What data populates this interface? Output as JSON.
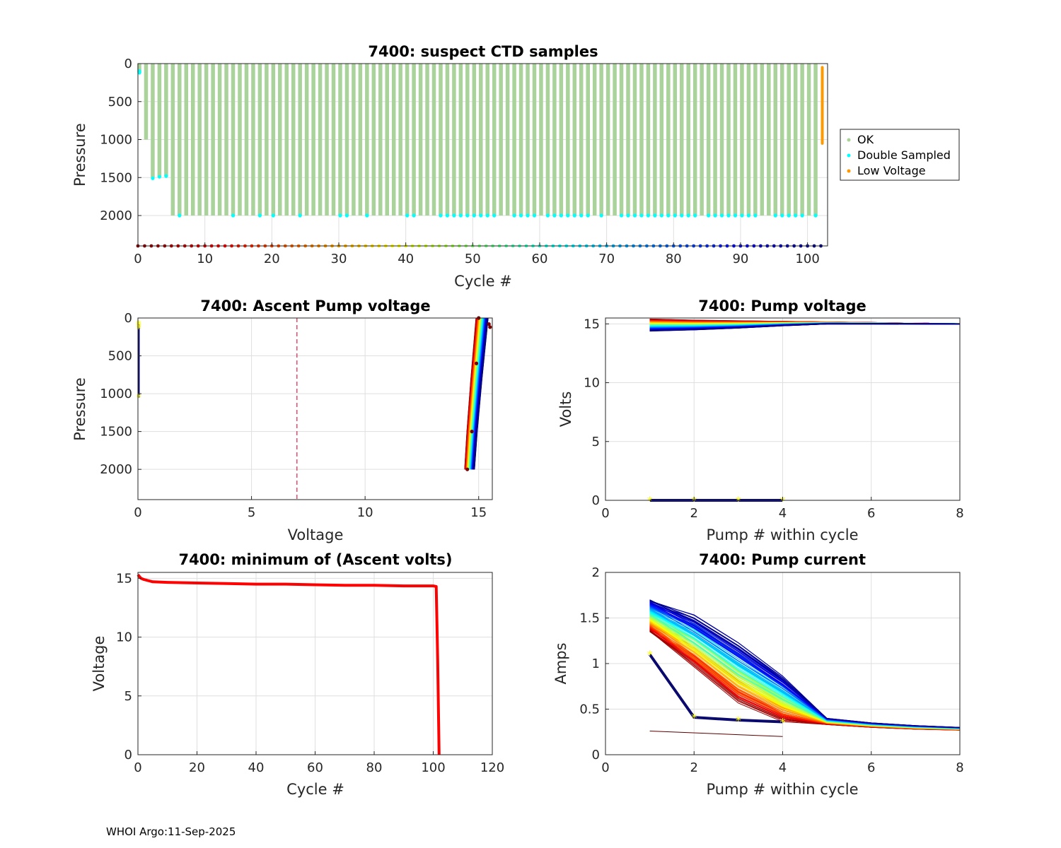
{
  "footer": "WHOI Argo:11-Sep-2025",
  "colors": {
    "ok": "#a9d39a",
    "double_sampled": "#00ffff",
    "low_voltage": "#ff9900",
    "min_volts_line": "#ff0000",
    "limit_line": "#e0204a",
    "marker_star": "#ffff00"
  },
  "chart_data": [
    {
      "id": "ctd",
      "type": "scatter",
      "title": "7400: suspect CTD samples",
      "xlabel": "Cycle #",
      "ylabel": "Pressure",
      "xlim": [
        0,
        103
      ],
      "ylim": [
        2400,
        0
      ],
      "xticks": [
        0,
        10,
        20,
        30,
        40,
        50,
        60,
        70,
        80,
        90,
        100
      ],
      "yticks": [
        0,
        500,
        1000,
        1500,
        2000
      ],
      "legend": [
        "OK",
        "Double Sampled",
        "Low Voltage"
      ],
      "legend_position": "right",
      "profiles": {
        "cycles": [
          0,
          1,
          2,
          3,
          4,
          5,
          6,
          7,
          8,
          9,
          10,
          11,
          12,
          13,
          14,
          15,
          16,
          17,
          18,
          19,
          20,
          21,
          22,
          23,
          24,
          25,
          26,
          27,
          28,
          29,
          30,
          31,
          32,
          33,
          34,
          35,
          36,
          37,
          38,
          39,
          40,
          41,
          42,
          43,
          44,
          45,
          46,
          47,
          48,
          49,
          50,
          51,
          52,
          53,
          54,
          55,
          56,
          57,
          58,
          59,
          60,
          61,
          62,
          63,
          64,
          65,
          66,
          67,
          68,
          69,
          70,
          71,
          72,
          73,
          74,
          75,
          76,
          77,
          78,
          79,
          80,
          81,
          82,
          83,
          84,
          85,
          86,
          87,
          88,
          89,
          90,
          91,
          92,
          93,
          94,
          95,
          96,
          97,
          98,
          99,
          100,
          101
        ],
        "max_pressure": [
          120,
          1000,
          1500,
          1490,
          1480,
          2000,
          2000,
          2000,
          2000,
          2000,
          2000,
          2000,
          2000,
          2000,
          2000,
          2000,
          2000,
          2000,
          2000,
          2000,
          2000,
          2000,
          2000,
          2000,
          2000,
          2000,
          2000,
          2000,
          2000,
          2000,
          2000,
          2000,
          2000,
          2000,
          2000,
          2000,
          2000,
          2000,
          2000,
          2000,
          2000,
          2000,
          2000,
          2000,
          2000,
          2000,
          2000,
          2000,
          2000,
          2000,
          2000,
          2000,
          2000,
          2000,
          2000,
          2000,
          2000,
          2000,
          2000,
          2000,
          2000,
          2000,
          2000,
          2000,
          2000,
          2000,
          2000,
          2000,
          2000,
          2000,
          2000,
          2000,
          2000,
          2000,
          2000,
          2000,
          2000,
          2000,
          2000,
          2000,
          2000,
          2000,
          2000,
          2000,
          2000,
          2000,
          2000,
          2000,
          2000,
          2000,
          2000,
          2000,
          2000,
          2000,
          2000,
          2000,
          2000,
          2000,
          2000,
          2000,
          2000,
          2000
        ]
      },
      "double_sampled": [
        [
          0,
          100
        ],
        [
          0,
          120
        ],
        [
          2,
          1510
        ],
        [
          3,
          1490
        ],
        [
          4,
          1480
        ],
        [
          6,
          2000
        ],
        [
          14,
          2000
        ],
        [
          18,
          2000
        ],
        [
          20,
          2000
        ],
        [
          24,
          2000
        ],
        [
          30,
          2000
        ],
        [
          31,
          2000
        ],
        [
          34,
          2000
        ],
        [
          40,
          2000
        ],
        [
          41,
          2000
        ],
        [
          45,
          2000
        ],
        [
          46,
          2000
        ],
        [
          47,
          2000
        ],
        [
          48,
          2000
        ],
        [
          49,
          2000
        ],
        [
          50,
          2000
        ],
        [
          51,
          2000
        ],
        [
          52,
          2000
        ],
        [
          53,
          2000
        ],
        [
          56,
          2000
        ],
        [
          57,
          2000
        ],
        [
          58,
          2000
        ],
        [
          59,
          2000
        ],
        [
          61,
          2000
        ],
        [
          62,
          2000
        ],
        [
          63,
          2000
        ],
        [
          64,
          2000
        ],
        [
          65,
          2000
        ],
        [
          66,
          2000
        ],
        [
          67,
          2000
        ],
        [
          69,
          2000
        ],
        [
          72,
          2000
        ],
        [
          73,
          2000
        ],
        [
          74,
          2000
        ],
        [
          75,
          2000
        ],
        [
          76,
          2000
        ],
        [
          77,
          2000
        ],
        [
          78,
          2000
        ],
        [
          79,
          2000
        ],
        [
          80,
          2000
        ],
        [
          81,
          2000
        ],
        [
          82,
          2000
        ],
        [
          83,
          2000
        ],
        [
          85,
          2000
        ],
        [
          86,
          2000
        ],
        [
          87,
          2000
        ],
        [
          88,
          2000
        ],
        [
          89,
          2000
        ],
        [
          90,
          2000
        ],
        [
          91,
          2000
        ],
        [
          92,
          2000
        ],
        [
          95,
          2000
        ],
        [
          96,
          2000
        ],
        [
          97,
          2000
        ],
        [
          98,
          2000
        ],
        [
          99,
          2000
        ],
        [
          101,
          2000
        ]
      ],
      "low_voltage": {
        "cycle": 102,
        "p_min": 50,
        "p_max": 1050
      },
      "cycle_markers": {
        "from": 0,
        "to": 102,
        "pressure": 2400
      }
    },
    {
      "id": "ascent",
      "type": "line",
      "title": "7400: Ascent Pump voltage",
      "xlabel": "Voltage",
      "ylabel": "Pressure",
      "xlim": [
        0,
        15.6
      ],
      "ylim": [
        2400,
        0
      ],
      "xticks": [
        0,
        5,
        10,
        15
      ],
      "yticks": [
        0,
        500,
        1000,
        1500,
        2000
      ],
      "limit_line_x": 7,
      "failed_profile": {
        "voltage": 0,
        "pressures": [
          80,
          100,
          120,
          140,
          1050
        ]
      },
      "profile_range": {
        "voltage_at_2000": [
          14.4,
          14.8
        ],
        "voltage_at_0": [
          14.9,
          15.4
        ]
      }
    },
    {
      "id": "pumpv",
      "type": "line",
      "title": "7400: Pump voltage",
      "xlabel": "Pump # within cycle",
      "ylabel": "Volts",
      "xlim": [
        0,
        8
      ],
      "ylim": [
        0,
        15.5
      ],
      "xticks": [
        0,
        2,
        4,
        6,
        8
      ],
      "yticks": [
        0,
        5,
        10,
        15
      ],
      "series_envelope": {
        "x": [
          1,
          2,
          3,
          4,
          5,
          6,
          7,
          8
        ],
        "first": [
          15.4,
          15.3,
          15.25,
          15.2,
          15.15,
          15.1,
          15.05,
          15.0
        ],
        "last": [
          14.4,
          14.5,
          14.65,
          14.85,
          15.0,
          15.0,
          15.0,
          15.0
        ]
      },
      "failed_cycle": {
        "x": [
          1,
          2,
          3,
          4
        ],
        "y": [
          0,
          0,
          0,
          0
        ]
      }
    },
    {
      "id": "minv",
      "type": "line",
      "title": "7400: minimum of (Ascent volts)",
      "xlabel": "Cycle #",
      "ylabel": "Voltage",
      "xlim": [
        0,
        120
      ],
      "ylim": [
        0,
        15.5
      ],
      "xticks": [
        0,
        20,
        40,
        60,
        80,
        100,
        120
      ],
      "yticks": [
        0,
        5,
        10,
        15
      ],
      "x": [
        0,
        1,
        2,
        5,
        10,
        20,
        30,
        40,
        50,
        60,
        70,
        80,
        90,
        100,
        101,
        101.5,
        102
      ],
      "y": [
        15.3,
        15.0,
        14.9,
        14.7,
        14.65,
        14.6,
        14.55,
        14.5,
        14.5,
        14.45,
        14.4,
        14.4,
        14.35,
        14.35,
        14.3,
        8.0,
        0.0
      ]
    },
    {
      "id": "pumpi",
      "type": "line",
      "title": "7400: Pump current",
      "xlabel": "Pump # within cycle",
      "ylabel": "Amps",
      "xlim": [
        0,
        8
      ],
      "ylim": [
        0,
        2
      ],
      "xticks": [
        0,
        2,
        4,
        6,
        8
      ],
      "yticks": [
        0,
        0.5,
        1,
        1.5,
        2
      ],
      "early_profile": {
        "x": [
          1,
          2,
          3,
          4,
          5,
          6,
          7,
          8
        ],
        "y": [
          1.35,
          1.0,
          0.6,
          0.38,
          0.33,
          0.3,
          0.28,
          0.27
        ]
      },
      "late_profile": {
        "x": [
          1,
          2,
          3,
          4,
          5,
          6,
          7,
          8
        ],
        "y": [
          1.7,
          1.5,
          1.2,
          0.85,
          0.4,
          0.35,
          0.32,
          0.3
        ]
      },
      "failed_cycle": {
        "x": [
          1,
          2,
          3,
          4
        ],
        "y": [
          1.1,
          0.41,
          0.38,
          0.36
        ]
      },
      "low_trace": {
        "x": [
          1,
          4
        ],
        "y": [
          0.26,
          0.2
        ]
      }
    }
  ]
}
